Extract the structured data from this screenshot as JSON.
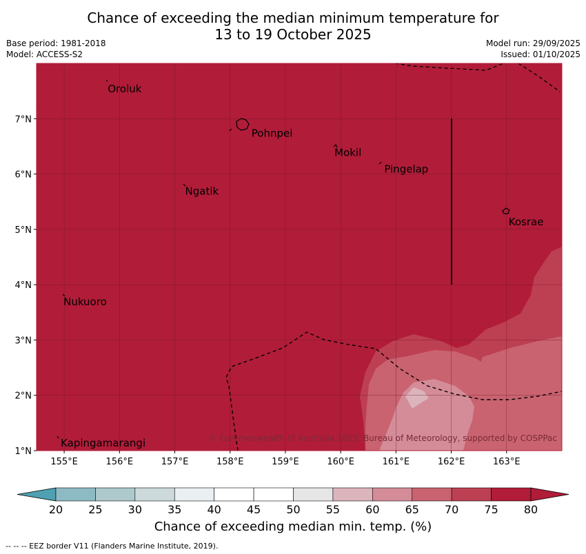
{
  "title": {
    "line1": "Chance of exceeding the median minimum temperature for",
    "line2": "13 to 19 October 2025"
  },
  "meta": {
    "base_period": "Base period: 1981-2018",
    "model": "Model: ACCESS-S2",
    "model_run": "Model run: 29/09/2025",
    "issued": "Issued: 01/10/2025"
  },
  "map": {
    "lon_range": [
      154.5,
      164.0
    ],
    "lat_range": [
      1.0,
      8.0
    ],
    "lon_ticks": [
      "155°E",
      "156°E",
      "157°E",
      "158°E",
      "159°E",
      "160°E",
      "161°E",
      "162°E",
      "163°E"
    ],
    "lat_ticks": [
      "1°N",
      "2°N",
      "3°N",
      "4°N",
      "5°N",
      "6°N",
      "7°N"
    ],
    "places": [
      {
        "name": "Oroluk",
        "lon": 155.75,
        "lat": 7.6
      },
      {
        "name": "Pohnpei",
        "lon": 158.35,
        "lat": 6.8
      },
      {
        "name": "Mokil",
        "lon": 159.85,
        "lat": 6.45
      },
      {
        "name": "Pingelap",
        "lon": 160.75,
        "lat": 6.15
      },
      {
        "name": "Ngatik",
        "lon": 157.15,
        "lat": 5.75
      },
      {
        "name": "Kosrae",
        "lon": 163.0,
        "lat": 5.2
      },
      {
        "name": "Nukuoro",
        "lon": 154.95,
        "lat": 3.75
      },
      {
        "name": "Kapingamarangi",
        "lon": 154.9,
        "lat": 1.2
      }
    ],
    "copyright": "© Commonwealth of Australia 2025, Bureau of Meteorology, supported by COSPPac"
  },
  "colorbar": {
    "ticks": [
      "20",
      "25",
      "30",
      "35",
      "40",
      "45",
      "50",
      "55",
      "60",
      "65",
      "70",
      "75",
      "80"
    ],
    "colors": [
      "#63aab8",
      "#8ebac4",
      "#aec9cb",
      "#cddadc",
      "#eaf0f2",
      "#ffffff",
      "#ffffff",
      "#e6e6e6",
      "#dcb4bc",
      "#d48d98",
      "#c9636f",
      "#bc3f52",
      "#b11d38"
    ],
    "low_color": "#4fa0b0",
    "high_color": "#b11d38",
    "label": "Chance of exceeding median min. temp. (%)"
  },
  "footnote": "--  --  -- EEZ border V11 (Flanders Marine Institute, 2019)."
}
